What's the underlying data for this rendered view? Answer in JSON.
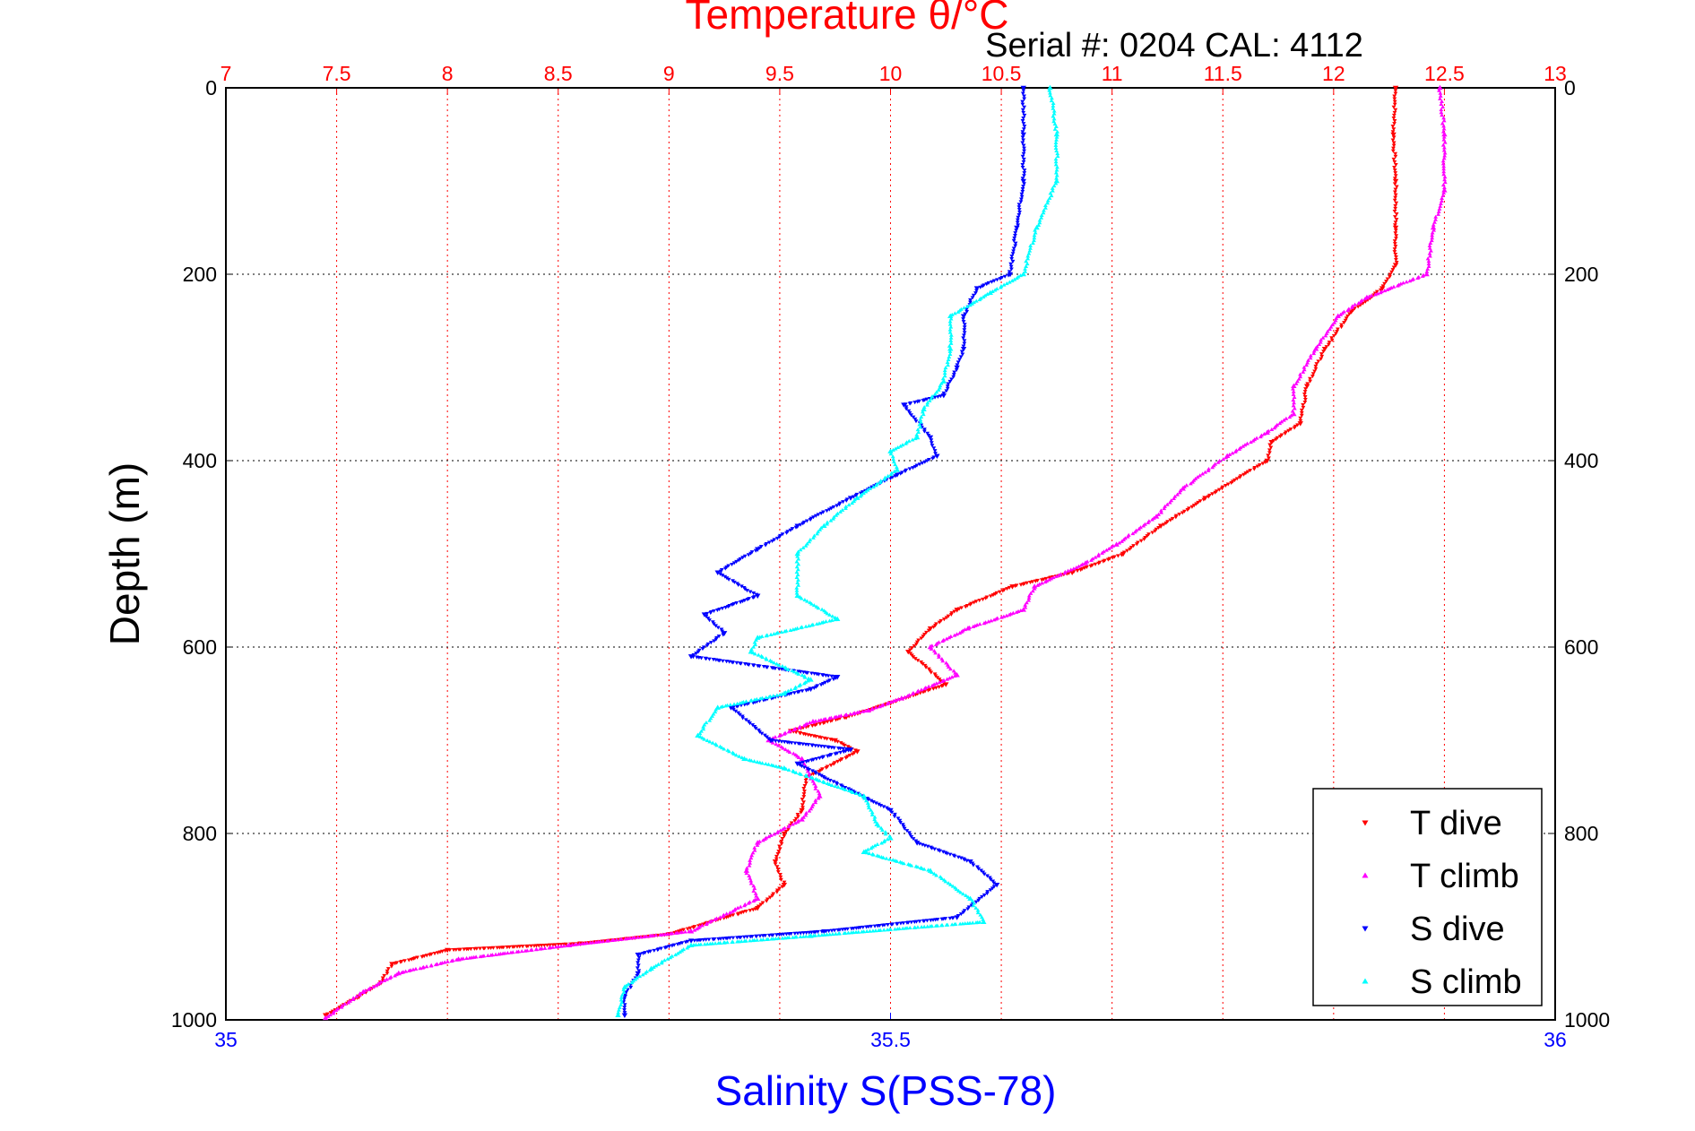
{
  "chart_data": {
    "type": "scatter",
    "title": "Temperature θ/°C",
    "subtitle": "Serial #: 0204  CAL: 4112",
    "ylabel": "Depth (m)",
    "xlabel": "Salinity S(PSS-78)",
    "top_axis": {
      "label": "Temperature θ/°C",
      "range": [
        7,
        13
      ],
      "ticks": [
        "7",
        "7.5",
        "8",
        "8.5",
        "9",
        "9.5",
        "10",
        "10.5",
        "11",
        "11.5",
        "12",
        "12.5",
        "13"
      ],
      "color": "#ff0000"
    },
    "bottom_axis": {
      "label": "Salinity S(PSS-78)",
      "range": [
        35,
        36
      ],
      "ticks": [
        "35",
        "35.5",
        "36"
      ],
      "color": "#0000ff"
    },
    "y_axis": {
      "range": [
        0,
        1000
      ],
      "reversed": true,
      "ticks": [
        "0",
        "200",
        "400",
        "600",
        "800",
        "1000"
      ]
    },
    "grid": true,
    "legend_placement": "bottom-right",
    "series": [
      {
        "name": "T dive",
        "axis": "top",
        "color": "#ff0000",
        "marker": "triangle-down",
        "points": [
          [
            12.28,
            0
          ],
          [
            12.27,
            50
          ],
          [
            12.28,
            100
          ],
          [
            12.28,
            150
          ],
          [
            12.28,
            190
          ],
          [
            12.22,
            215
          ],
          [
            12.08,
            240
          ],
          [
            11.96,
            280
          ],
          [
            11.88,
            320
          ],
          [
            11.85,
            360
          ],
          [
            11.72,
            380
          ],
          [
            11.7,
            400
          ],
          [
            11.42,
            440
          ],
          [
            11.22,
            470
          ],
          [
            11.05,
            500
          ],
          [
            10.82,
            520
          ],
          [
            10.55,
            535
          ],
          [
            10.3,
            560
          ],
          [
            10.18,
            580
          ],
          [
            10.08,
            605
          ],
          [
            10.25,
            640
          ],
          [
            10.0,
            660
          ],
          [
            9.8,
            675
          ],
          [
            9.55,
            690
          ],
          [
            9.75,
            700
          ],
          [
            9.85,
            712
          ],
          [
            9.62,
            740
          ],
          [
            9.6,
            775
          ],
          [
            9.52,
            800
          ],
          [
            9.48,
            830
          ],
          [
            9.52,
            855
          ],
          [
            9.4,
            880
          ],
          [
            9.0,
            908
          ],
          [
            8.6,
            918
          ],
          [
            8.0,
            925
          ],
          [
            7.75,
            940
          ],
          [
            7.7,
            960
          ],
          [
            7.6,
            975
          ],
          [
            7.45,
            995
          ]
        ]
      },
      {
        "name": "T climb",
        "axis": "top",
        "color": "#ff00ff",
        "marker": "triangle-up",
        "points": [
          [
            12.48,
            0
          ],
          [
            12.5,
            50
          ],
          [
            12.5,
            110
          ],
          [
            12.45,
            150
          ],
          [
            12.42,
            200
          ],
          [
            12.15,
            225
          ],
          [
            12.02,
            245
          ],
          [
            11.92,
            280
          ],
          [
            11.82,
            320
          ],
          [
            11.82,
            350
          ],
          [
            11.7,
            370
          ],
          [
            11.52,
            395
          ],
          [
            11.32,
            430
          ],
          [
            11.2,
            460
          ],
          [
            11.02,
            490
          ],
          [
            10.88,
            510
          ],
          [
            10.65,
            535
          ],
          [
            10.6,
            560
          ],
          [
            10.35,
            580
          ],
          [
            10.18,
            600
          ],
          [
            10.3,
            630
          ],
          [
            10.05,
            655
          ],
          [
            9.9,
            668
          ],
          [
            9.65,
            680
          ],
          [
            9.45,
            700
          ],
          [
            9.6,
            720
          ],
          [
            9.68,
            760
          ],
          [
            9.6,
            785
          ],
          [
            9.4,
            810
          ],
          [
            9.35,
            840
          ],
          [
            9.4,
            870
          ],
          [
            9.1,
            905
          ],
          [
            8.55,
            920
          ],
          [
            8.05,
            935
          ],
          [
            7.78,
            950
          ],
          [
            7.62,
            970
          ],
          [
            7.45,
            998
          ]
        ]
      },
      {
        "name": "S dive",
        "axis": "bottom",
        "color": "#0000ff",
        "marker": "triangle-down",
        "points": [
          [
            35.6,
            0
          ],
          [
            35.6,
            50
          ],
          [
            35.6,
            100
          ],
          [
            35.595,
            150
          ],
          [
            35.59,
            200
          ],
          [
            35.565,
            215
          ],
          [
            35.555,
            245
          ],
          [
            35.555,
            280
          ],
          [
            35.55,
            300
          ],
          [
            35.54,
            330
          ],
          [
            35.51,
            340
          ],
          [
            35.53,
            375
          ],
          [
            35.535,
            395
          ],
          [
            35.505,
            415
          ],
          [
            35.47,
            440
          ],
          [
            35.43,
            470
          ],
          [
            35.4,
            495
          ],
          [
            35.37,
            520
          ],
          [
            35.4,
            545
          ],
          [
            35.36,
            565
          ],
          [
            35.375,
            585
          ],
          [
            35.35,
            610
          ],
          [
            35.46,
            632
          ],
          [
            35.44,
            645
          ],
          [
            35.38,
            665
          ],
          [
            35.41,
            700
          ],
          [
            35.47,
            710
          ],
          [
            35.43,
            725
          ],
          [
            35.5,
            775
          ],
          [
            35.52,
            810
          ],
          [
            35.56,
            830
          ],
          [
            35.58,
            855
          ],
          [
            35.55,
            890
          ],
          [
            35.45,
            905
          ],
          [
            35.35,
            915
          ],
          [
            35.31,
            930
          ],
          [
            35.31,
            950
          ],
          [
            35.3,
            975
          ],
          [
            35.3,
            995
          ]
        ]
      },
      {
        "name": "S climb",
        "axis": "bottom",
        "color": "#00ffff",
        "marker": "triangle-up",
        "points": [
          [
            35.62,
            0
          ],
          [
            35.625,
            50
          ],
          [
            35.625,
            100
          ],
          [
            35.61,
            150
          ],
          [
            35.6,
            200
          ],
          [
            35.575,
            220
          ],
          [
            35.545,
            245
          ],
          [
            35.545,
            280
          ],
          [
            35.54,
            315
          ],
          [
            35.525,
            345
          ],
          [
            35.52,
            375
          ],
          [
            35.5,
            390
          ],
          [
            35.505,
            410
          ],
          [
            35.475,
            440
          ],
          [
            35.45,
            470
          ],
          [
            35.43,
            500
          ],
          [
            35.43,
            545
          ],
          [
            35.46,
            570
          ],
          [
            35.4,
            590
          ],
          [
            35.395,
            605
          ],
          [
            35.44,
            635
          ],
          [
            35.42,
            650
          ],
          [
            35.37,
            665
          ],
          [
            35.355,
            695
          ],
          [
            35.39,
            720
          ],
          [
            35.42,
            730
          ],
          [
            35.48,
            760
          ],
          [
            35.49,
            790
          ],
          [
            35.5,
            805
          ],
          [
            35.48,
            820
          ],
          [
            35.53,
            840
          ],
          [
            35.56,
            870
          ],
          [
            35.57,
            895
          ],
          [
            35.44,
            910
          ],
          [
            35.35,
            920
          ],
          [
            35.32,
            945
          ],
          [
            35.3,
            965
          ],
          [
            35.295,
            995
          ]
        ]
      }
    ]
  }
}
